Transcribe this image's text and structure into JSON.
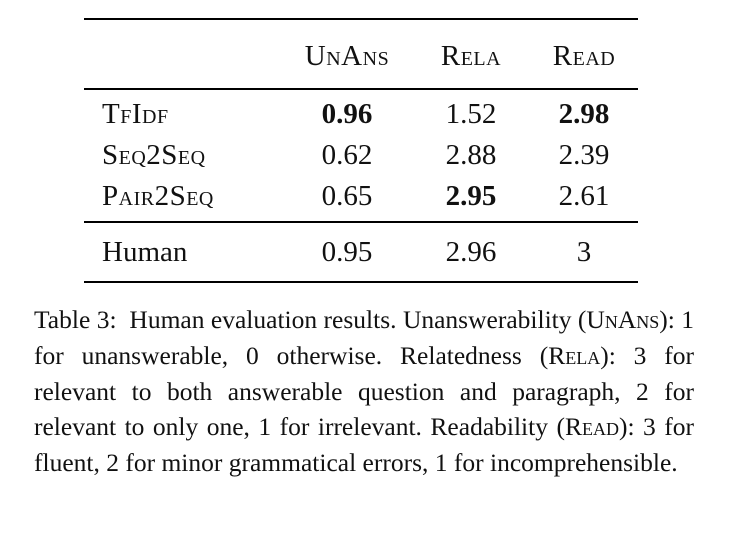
{
  "table": {
    "columns": [
      "",
      "UnAns",
      "Rela",
      "Read"
    ],
    "rows": [
      {
        "name": "TfIdf",
        "unans": "0.96",
        "rela": "1.52",
        "read": "2.98",
        "bold": [
          "unans",
          "read"
        ]
      },
      {
        "name": "Seq2Seq",
        "unans": "0.62",
        "rela": "2.88",
        "read": "2.39",
        "bold": []
      },
      {
        "name": "Pair2Seq",
        "unans": "0.65",
        "rela": "2.95",
        "read": "2.61",
        "bold": [
          "rela"
        ]
      },
      {
        "name": "Human",
        "unans": "0.95",
        "rela": "2.96",
        "read": "3",
        "bold": []
      }
    ]
  },
  "caption": {
    "label": "Table 3:",
    "p1": "Human evaluation results. Unanswerability (",
    "unans": "UnAns",
    "p2": "): 1 for unanswerable, 0 otherwise. Relatedness (",
    "rela": "Rela",
    "p3": "): 3 for relevant to both answerable question and paragraph, 2 for relevant to only one, 1 for irrelevant. Readability (",
    "read": "Read",
    "p4": "): 3 for fluent, 2 for minor grammatical errors, 1 for incomprehensible."
  }
}
